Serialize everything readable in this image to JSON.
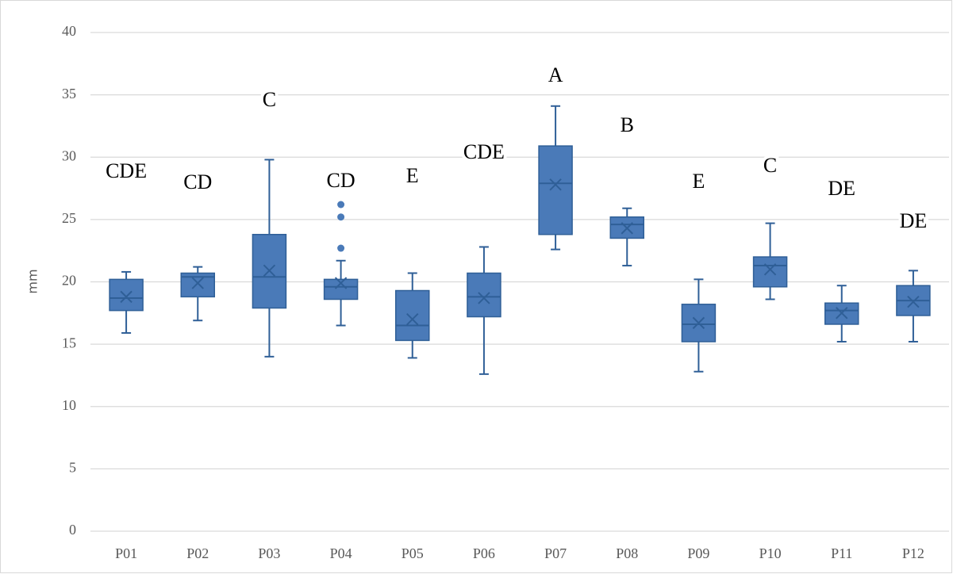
{
  "chart_data": {
    "type": "box",
    "y_label": "mm",
    "categories": [
      "P01",
      "P02",
      "P03",
      "P04",
      "P05",
      "P06",
      "P07",
      "P08",
      "P09",
      "P10",
      "P11",
      "P12"
    ],
    "annotations": [
      "CDE",
      "CD",
      "C",
      "CD",
      "E",
      "CDE",
      "A",
      "B",
      "E",
      "C",
      "DE",
      "DE"
    ],
    "color": "#4a7ab8",
    "edge_color": "#2f5f97",
    "boxes": [
      {
        "min": 15.9,
        "q1": 17.7,
        "median": 18.7,
        "q3": 20.2,
        "max": 20.8,
        "mean": 18.8
      },
      {
        "min": 16.9,
        "q1": 18.8,
        "median": 20.4,
        "q3": 20.7,
        "max": 21.2,
        "mean": 19.9
      },
      {
        "min": 14.0,
        "q1": 17.9,
        "median": 20.4,
        "q3": 23.8,
        "max": 29.8,
        "mean": 20.9
      },
      {
        "min": 16.5,
        "q1": 18.6,
        "median": 19.6,
        "q3": 20.2,
        "max": 21.7,
        "mean": 19.9,
        "outliers": [
          22.7,
          25.2,
          26.2
        ]
      },
      {
        "min": 13.9,
        "q1": 15.3,
        "median": 16.5,
        "q3": 19.3,
        "max": 20.7,
        "mean": 17.0
      },
      {
        "min": 12.6,
        "q1": 17.2,
        "median": 18.8,
        "q3": 20.7,
        "max": 22.8,
        "mean": 18.7
      },
      {
        "min": 22.6,
        "q1": 23.8,
        "median": 27.9,
        "q3": 30.9,
        "max": 34.1,
        "mean": 27.8
      },
      {
        "min": 21.3,
        "q1": 23.5,
        "median": 24.6,
        "q3": 25.2,
        "max": 25.9,
        "mean": 24.3
      },
      {
        "min": 12.8,
        "q1": 15.2,
        "median": 16.6,
        "q3": 18.2,
        "max": 20.2,
        "mean": 16.7
      },
      {
        "min": 18.6,
        "q1": 19.6,
        "median": 21.3,
        "q3": 22.0,
        "max": 24.7,
        "mean": 21.0
      },
      {
        "min": 15.2,
        "q1": 16.6,
        "median": 17.7,
        "q3": 18.3,
        "max": 19.7,
        "mean": 17.5
      },
      {
        "min": 15.2,
        "q1": 17.3,
        "median": 18.5,
        "q3": 19.7,
        "max": 20.9,
        "mean": 18.4
      }
    ],
    "ylim": [
      0,
      40
    ],
    "yticks": [
      0,
      5,
      10,
      15,
      20,
      25,
      30,
      35,
      40
    ],
    "grid": true
  }
}
